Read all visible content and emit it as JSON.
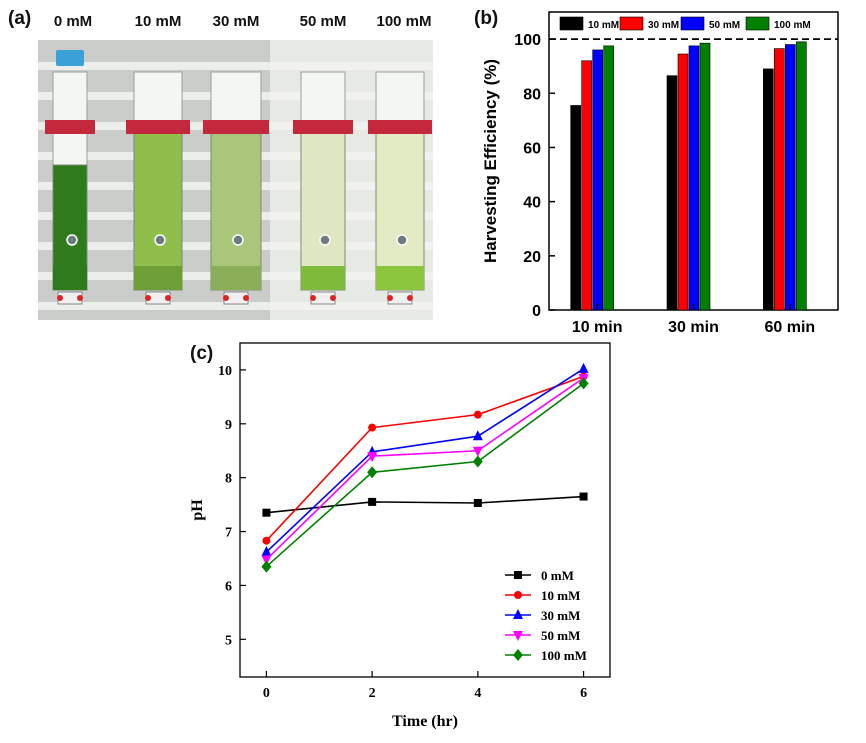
{
  "panels": {
    "a": {
      "label": "(a)",
      "column_labels": [
        "0 mM",
        "10 mM",
        "30 mM",
        "50 mM",
        "100 mM"
      ],
      "tube_colors": [
        "#2f7a1c",
        "#8fbe4a",
        "#a9c67a",
        "#dfe8c2",
        "#e3ebc5"
      ],
      "settled_colors": [
        "#2f7a1c",
        "#6e9e36",
        "#8aaf58",
        "#7fbb3a",
        "#8cc63f"
      ]
    },
    "b": {
      "label": "(b)"
    },
    "c": {
      "label": "(c)"
    }
  },
  "chart_data": [
    {
      "type": "bar",
      "panel": "b",
      "title": "",
      "xlabel": "",
      "ylabel": "Harvesting Efficiency (%)",
      "categories": [
        "10 min",
        "30 min",
        "60 min"
      ],
      "ylim": [
        0,
        110
      ],
      "yticks": [
        0,
        20,
        40,
        60,
        80,
        100
      ],
      "reference_line": {
        "y": 100,
        "style": "dashed"
      },
      "legend_position": "top",
      "series": [
        {
          "name": "10 mM",
          "color": "#000000",
          "values": [
            75.5,
            86.5,
            89
          ]
        },
        {
          "name": "30 mM",
          "color": "#ff0000",
          "values": [
            92,
            94.5,
            96.5
          ]
        },
        {
          "name": "50 mM",
          "color": "#0000ff",
          "values": [
            96,
            97.5,
            98
          ]
        },
        {
          "name": "100 mM",
          "color": "#008000",
          "values": [
            97.5,
            98.5,
            99
          ]
        }
      ]
    },
    {
      "type": "line",
      "panel": "c",
      "title": "",
      "xlabel": "Time (hr)",
      "ylabel": "pH",
      "x": [
        0,
        2,
        4,
        6
      ],
      "xlim": [
        -0.5,
        6.5
      ],
      "xticks": [
        0,
        2,
        4,
        6
      ],
      "ylim": [
        4.3,
        10.5
      ],
      "yticks": [
        5,
        6,
        7,
        8,
        9,
        10
      ],
      "legend_position": "bottom-right",
      "series": [
        {
          "name": "0 mM",
          "color": "#000000",
          "marker": "square",
          "values": [
            7.35,
            7.55,
            7.53,
            7.65
          ]
        },
        {
          "name": "10 mM",
          "color": "#ff0000",
          "marker": "circle",
          "values": [
            6.83,
            8.93,
            9.17,
            9.88
          ]
        },
        {
          "name": "30 mM",
          "color": "#0000ff",
          "marker": "triangle-up",
          "values": [
            6.62,
            8.48,
            8.77,
            10.02
          ]
        },
        {
          "name": "50 mM",
          "color": "#ff00ff",
          "marker": "triangle-down",
          "values": [
            6.48,
            8.4,
            8.5,
            9.85
          ]
        },
        {
          "name": "100 mM",
          "color": "#008000",
          "marker": "diamond",
          "values": [
            6.35,
            8.1,
            8.3,
            9.75
          ]
        }
      ]
    }
  ]
}
